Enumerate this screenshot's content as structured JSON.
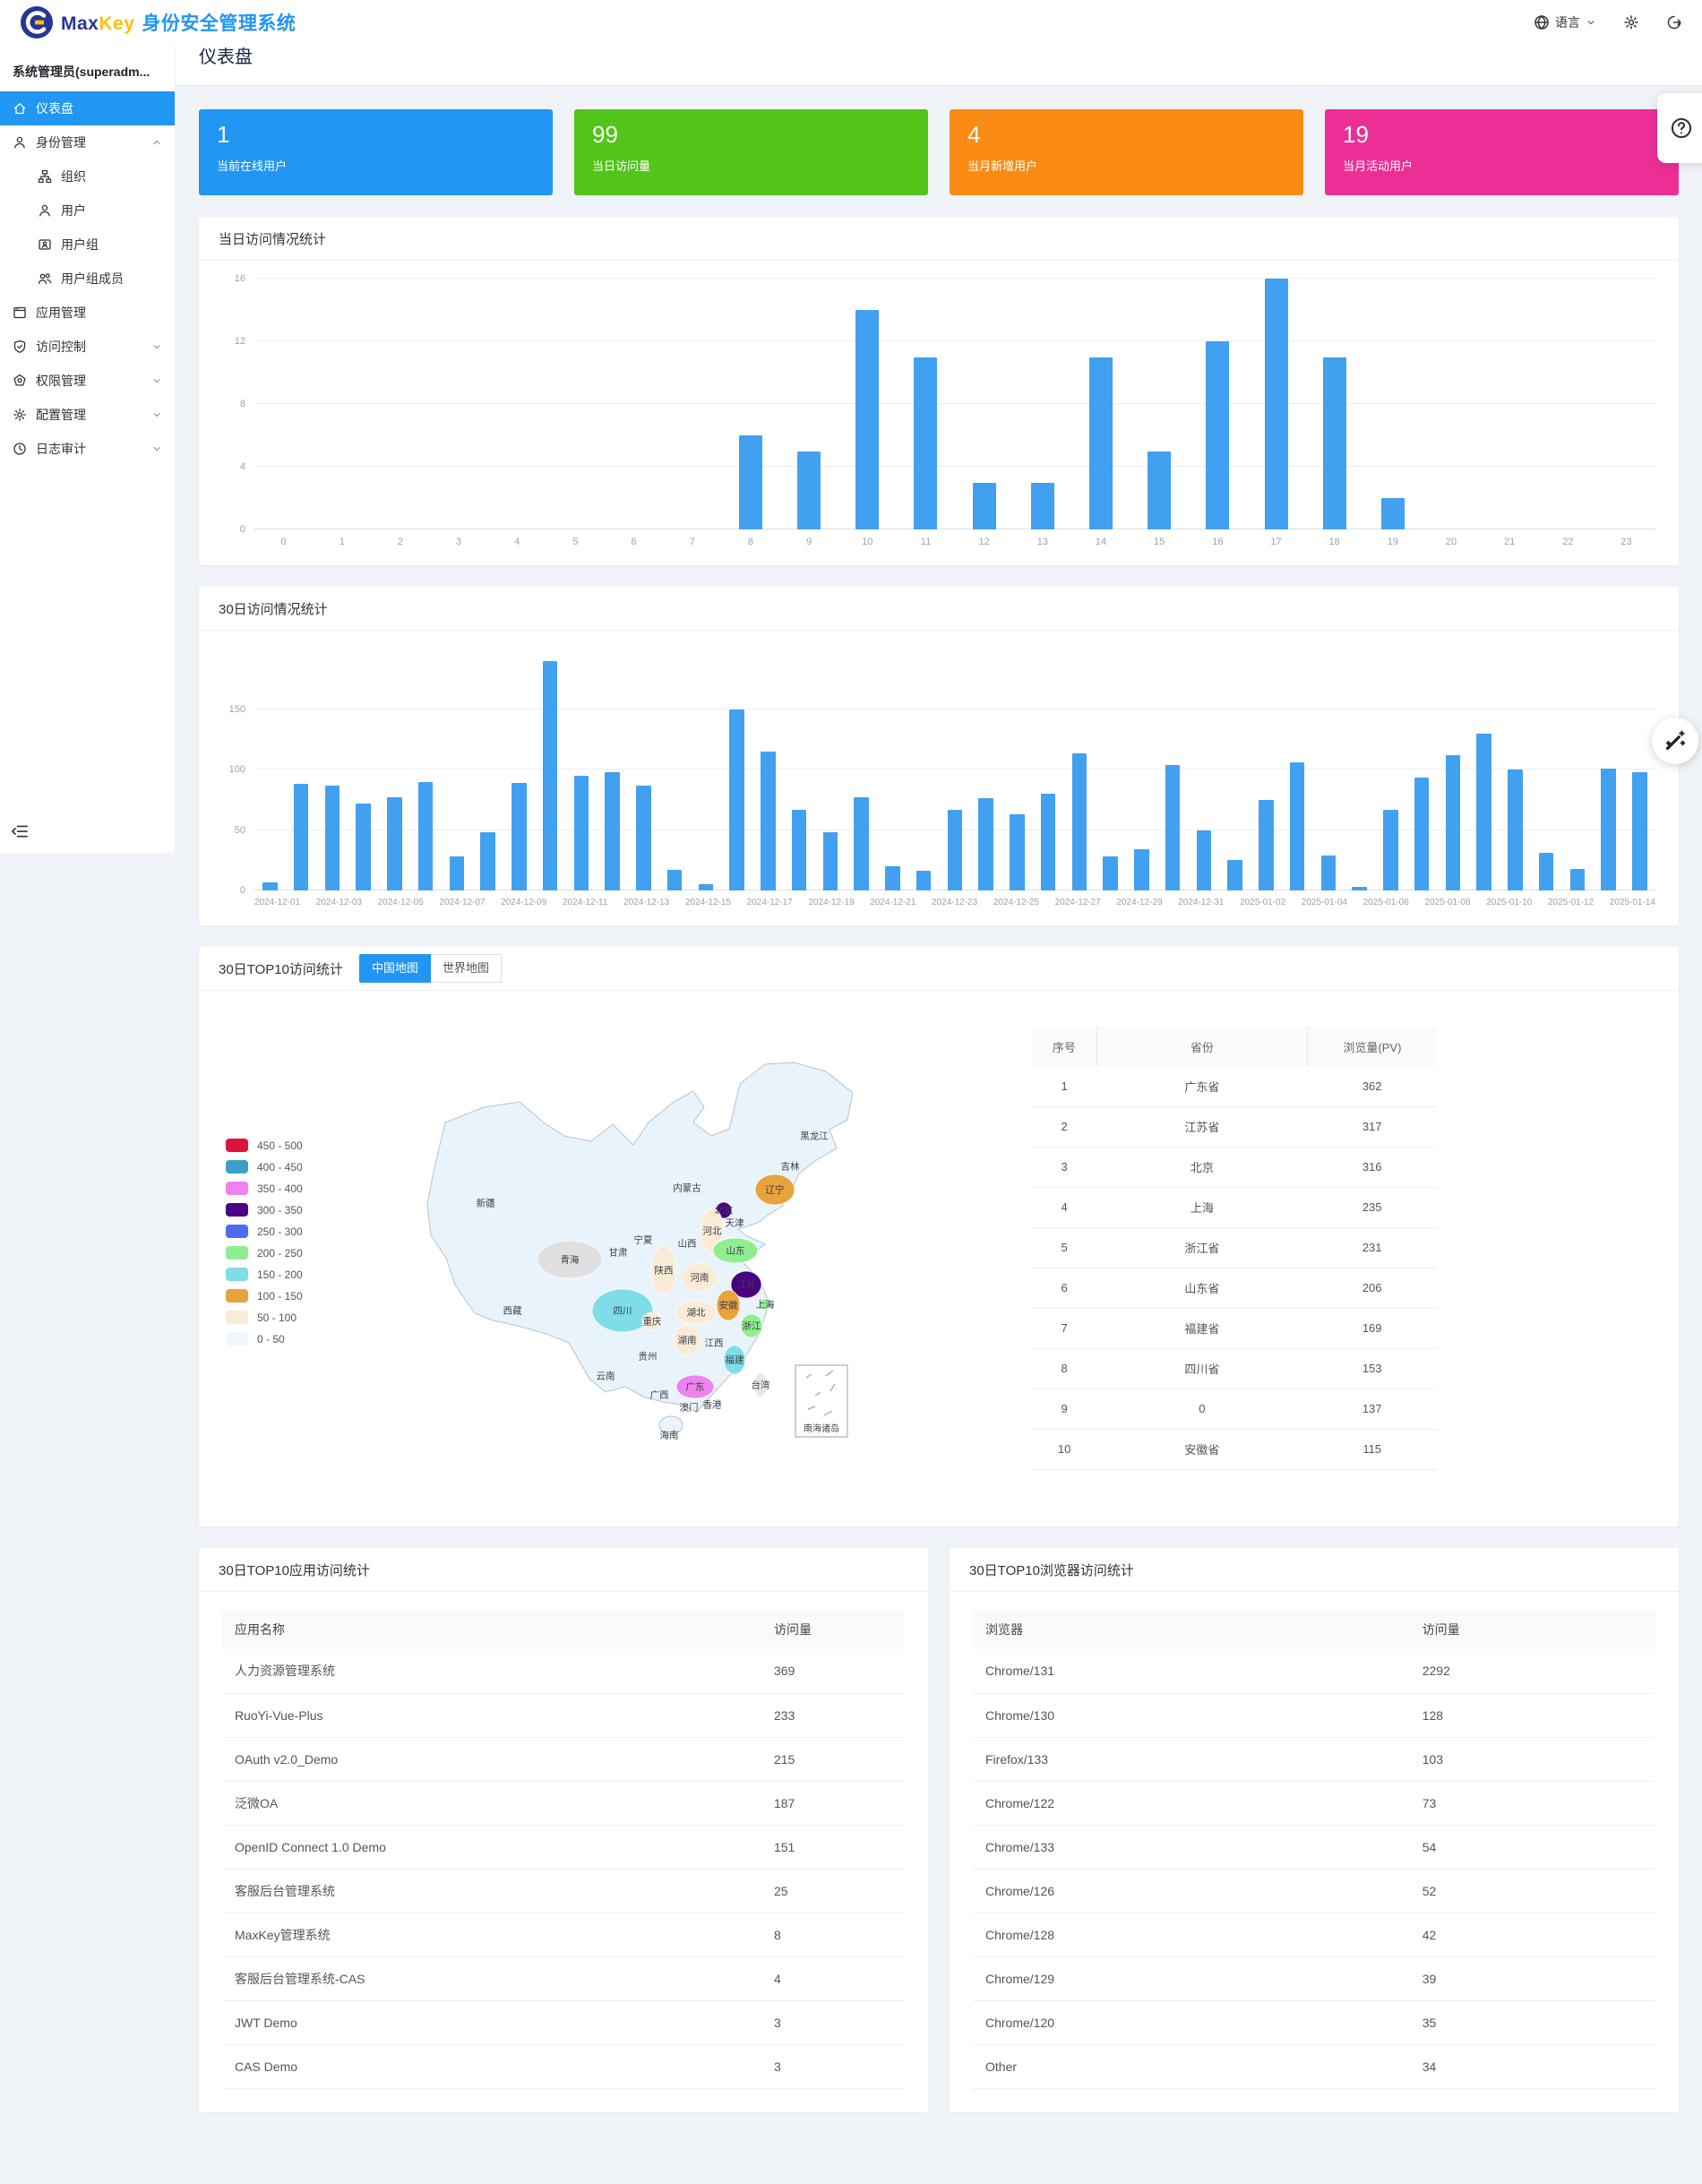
{
  "header": {
    "brand": {
      "max": "Max",
      "key": "Key",
      "suffix": "身份安全管理系统"
    },
    "actions": {
      "language": "语言"
    }
  },
  "sidebar": {
    "user_label": "系统管理员(superadm...",
    "items": [
      {
        "name": "dashboard",
        "label": "仪表盘",
        "icon": "home-icon",
        "active": true,
        "indent": 0,
        "chevron": null
      },
      {
        "name": "identity",
        "label": "身份管理",
        "icon": "identity-icon",
        "active": false,
        "indent": 0,
        "chevron": "up"
      },
      {
        "name": "organization",
        "label": "组织",
        "icon": "organization-icon",
        "active": false,
        "indent": 1,
        "chevron": null
      },
      {
        "name": "users",
        "label": "用户",
        "icon": "user-icon",
        "active": false,
        "indent": 1,
        "chevron": null
      },
      {
        "name": "user-groups",
        "label": "用户组",
        "icon": "user-group-icon",
        "active": false,
        "indent": 1,
        "chevron": null
      },
      {
        "name": "group-members",
        "label": "用户组成员",
        "icon": "group-members-icon",
        "active": false,
        "indent": 1,
        "chevron": null
      },
      {
        "name": "apps",
        "label": "应用管理",
        "icon": "app-management-icon",
        "active": false,
        "indent": 0,
        "chevron": null
      },
      {
        "name": "access-control",
        "label": "访问控制",
        "icon": "access-control-icon",
        "active": false,
        "indent": 0,
        "chevron": "down"
      },
      {
        "name": "permissions",
        "label": "权限管理",
        "icon": "permission-icon",
        "active": false,
        "indent": 0,
        "chevron": "down"
      },
      {
        "name": "config",
        "label": "配置管理",
        "icon": "config-icon",
        "active": false,
        "indent": 0,
        "chevron": "down"
      },
      {
        "name": "audit",
        "label": "日志审计",
        "icon": "audit-log-icon",
        "active": false,
        "indent": 0,
        "chevron": "down"
      }
    ]
  },
  "breadcrumb": {
    "home": "home",
    "separator": "/",
    "current": "仪表盘"
  },
  "page_title": "仪表盘",
  "stat_cards": [
    {
      "value": "1",
      "label": "当前在线用户",
      "color": "#2196f3"
    },
    {
      "value": "99",
      "label": "当日访问量",
      "color": "#52c41a"
    },
    {
      "value": "4",
      "label": "当月新增用户",
      "color": "#fa8c16"
    },
    {
      "value": "19",
      "label": "当月活动用户",
      "color": "#eb2f96"
    }
  ],
  "chart_data": [
    {
      "id": "today_visits",
      "type": "bar",
      "title": "当日访问情况统计",
      "categories": [
        "0",
        "1",
        "2",
        "3",
        "4",
        "5",
        "6",
        "7",
        "8",
        "9",
        "10",
        "11",
        "12",
        "13",
        "14",
        "15",
        "16",
        "17",
        "18",
        "19",
        "20",
        "21",
        "22",
        "23"
      ],
      "values": [
        0,
        0,
        0,
        0,
        0,
        0,
        0,
        0,
        6,
        5,
        14,
        11,
        3,
        3,
        11,
        5,
        12,
        16,
        11,
        2,
        0,
        0,
        0,
        0
      ],
      "xlabel": "",
      "ylabel": "",
      "ylim": [
        0,
        16
      ],
      "yticks": [
        0,
        4,
        8,
        12,
        16
      ],
      "grid": true,
      "legend_position": "none",
      "bar_color": "#42a0f0",
      "label_every": 1
    },
    {
      "id": "monthly_visits",
      "type": "bar",
      "title": "30日访问情况统计",
      "categories": [
        "2024-12-01",
        "2024-12-02",
        "2024-12-03",
        "2024-12-04",
        "2024-12-05",
        "2024-12-06",
        "2024-12-07",
        "2024-12-08",
        "2024-12-09",
        "2024-12-10",
        "2024-12-11",
        "2024-12-12",
        "2024-12-13",
        "2024-12-14",
        "2024-12-15",
        "2024-12-16",
        "2024-12-17",
        "2024-12-18",
        "2024-12-19",
        "2024-12-20",
        "2024-12-21",
        "2024-12-22",
        "2024-12-23",
        "2024-12-24",
        "2024-12-25",
        "2024-12-26",
        "2024-12-27",
        "2024-12-28",
        "2024-12-29",
        "2024-12-30",
        "2024-12-31",
        "2025-01-01",
        "2025-01-02",
        "2025-01-03",
        "2025-01-04",
        "2025-01-05",
        "2025-01-06",
        "2025-01-07",
        "2025-01-08",
        "2025-01-09",
        "2025-01-10",
        "2025-01-11",
        "2025-01-12",
        "2025-01-13",
        "2025-01-14"
      ],
      "values": [
        7,
        88,
        87,
        72,
        77,
        90,
        28,
        48,
        89,
        190,
        95,
        98,
        87,
        17,
        5,
        150,
        115,
        67,
        48,
        77,
        20,
        16,
        67,
        76,
        63,
        80,
        113,
        28,
        34,
        104,
        50,
        25,
        75,
        106,
        29,
        3,
        67,
        93,
        112,
        130,
        100,
        31,
        18,
        101,
        98
      ],
      "xlabel": "",
      "ylabel": "",
      "ylim": [
        0,
        200
      ],
      "yticks": [
        0,
        50,
        100,
        150
      ],
      "grid": true,
      "legend_position": "none",
      "bar_color": "#42a0f0",
      "label_every": 2
    },
    {
      "id": "region_top10",
      "type": "heatmap",
      "title": "30日TOP10访问统计",
      "tabs": [
        "中国地图",
        "世界地图"
      ],
      "active_tab": "中国地图",
      "legend": [
        {
          "range": "450 - 500",
          "color": "#dc143c"
        },
        {
          "range": "400 - 450",
          "color": "#3c9fc8"
        },
        {
          "range": "350 - 400",
          "color": "#ee82ee"
        },
        {
          "range": "300 - 350",
          "color": "#4b0082"
        },
        {
          "range": "250 - 300",
          "color": "#4d6bf0"
        },
        {
          "range": "200 - 250",
          "color": "#90ee90"
        },
        {
          "range": "150 - 200",
          "color": "#7fdde8"
        },
        {
          "range": "100 - 150",
          "color": "#e8a33d"
        },
        {
          "range": "50 - 100",
          "color": "#faebd7"
        },
        {
          "range": "0 - 50",
          "color": "#f0f8ff"
        }
      ],
      "table": {
        "headers": [
          "序号",
          "省份",
          "浏览量(PV)"
        ],
        "rows": [
          [
            "1",
            "广东省",
            "362"
          ],
          [
            "2",
            "江苏省",
            "317"
          ],
          [
            "3",
            "北京",
            "316"
          ],
          [
            "4",
            "上海",
            "235"
          ],
          [
            "5",
            "浙江省",
            "231"
          ],
          [
            "6",
            "山东省",
            "206"
          ],
          [
            "7",
            "福建省",
            "169"
          ],
          [
            "8",
            "四川省",
            "153"
          ],
          [
            "9",
            "0",
            "137"
          ],
          [
            "10",
            "安徽省",
            "115"
          ]
        ]
      },
      "inset_label": "南海诸岛",
      "provinces": [
        {
          "name": "新疆",
          "x": 120,
          "y": 185,
          "color": null
        },
        {
          "name": "西藏",
          "x": 150,
          "y": 305,
          "color": null
        },
        {
          "name": "青海",
          "x": 214,
          "y": 248,
          "color": "#e0e0e0",
          "rx": 36,
          "ry": 21
        },
        {
          "name": "甘肃",
          "x": 268,
          "y": 240,
          "color": null
        },
        {
          "name": "宁夏",
          "x": 296,
          "y": 226,
          "color": null
        },
        {
          "name": "内蒙古",
          "x": 345,
          "y": 168,
          "color": null
        },
        {
          "name": "黑龙江",
          "x": 487,
          "y": 110,
          "color": null
        },
        {
          "name": "吉林",
          "x": 460,
          "y": 144,
          "color": null
        },
        {
          "name": "辽宁",
          "x": 443,
          "y": 170,
          "color": "#e8a33d",
          "rx": 22,
          "ry": 17
        },
        {
          "name": "北京",
          "x": 386,
          "y": 193,
          "color": "#4b0082",
          "rx": 9,
          "ry": 9
        },
        {
          "name": "天津",
          "x": 398,
          "y": 207,
          "color": null
        },
        {
          "name": "河北",
          "x": 373,
          "y": 216,
          "color": "#faebd7",
          "rx": 13,
          "ry": 25
        },
        {
          "name": "山西",
          "x": 345,
          "y": 230,
          "color": null
        },
        {
          "name": "山东",
          "x": 399,
          "y": 238,
          "color": "#90ee90",
          "rx": 25,
          "ry": 14
        },
        {
          "name": "陕西",
          "x": 319,
          "y": 260,
          "color": "#faebd7",
          "rx": 14,
          "ry": 27
        },
        {
          "name": "河南",
          "x": 359,
          "y": 268,
          "color": "#faebd7",
          "rx": 20,
          "ry": 16
        },
        {
          "name": "江苏",
          "x": 411,
          "y": 276,
          "color": "#4b0082",
          "rx": 17,
          "ry": 15
        },
        {
          "name": "安徽",
          "x": 391,
          "y": 299,
          "color": "#e8a33d",
          "rx": 13,
          "ry": 17
        },
        {
          "name": "上海",
          "x": 432,
          "y": 298,
          "color": "#90ee90",
          "rx": 6,
          "ry": 6
        },
        {
          "name": "湖北",
          "x": 355,
          "y": 307,
          "color": "#faebd7",
          "rx": 23,
          "ry": 13
        },
        {
          "name": "浙江",
          "x": 417,
          "y": 322,
          "color": "#90ee90",
          "rx": 12,
          "ry": 13
        },
        {
          "name": "四川",
          "x": 273,
          "y": 305,
          "color": "#7fdde8",
          "rx": 34,
          "ry": 24
        },
        {
          "name": "重庆",
          "x": 306,
          "y": 317,
          "color": "#faebd7",
          "rx": 11,
          "ry": 10
        },
        {
          "name": "湖南",
          "x": 345,
          "y": 338,
          "color": "#faebd7",
          "rx": 15,
          "ry": 17
        },
        {
          "name": "江西",
          "x": 375,
          "y": 341,
          "color": null
        },
        {
          "name": "福建",
          "x": 398,
          "y": 360,
          "color": "#7fdde8",
          "rx": 12,
          "ry": 16
        },
        {
          "name": "贵州",
          "x": 301,
          "y": 356,
          "color": null
        },
        {
          "name": "云南",
          "x": 254,
          "y": 378,
          "color": null
        },
        {
          "name": "广西",
          "x": 314,
          "y": 399,
          "color": null
        },
        {
          "name": "广东",
          "x": 354,
          "y": 390,
          "color": "#ee82ee",
          "rx": 21,
          "ry": 13
        },
        {
          "name": "澳门",
          "x": 347,
          "y": 413,
          "color": null
        },
        {
          "name": "香港",
          "x": 373,
          "y": 410,
          "color": null
        },
        {
          "name": "海南",
          "x": 325,
          "y": 444,
          "color": null
        },
        {
          "name": "台湾",
          "x": 427,
          "y": 388,
          "color": "#e6e6e6",
          "rx": 7,
          "ry": 13
        }
      ]
    },
    {
      "id": "apps_top10",
      "type": "table",
      "title": "30日TOP10应用访问统计",
      "headers": [
        "应用名称",
        "访问量"
      ],
      "rows": [
        [
          "人力资源管理系统",
          "369"
        ],
        [
          "RuoYi-Vue-Plus",
          "233"
        ],
        [
          "OAuth v2.0_Demo",
          "215"
        ],
        [
          "泛微OA",
          "187"
        ],
        [
          "OpenID Connect 1.0 Demo",
          "151"
        ],
        [
          "客服后台管理系统",
          "25"
        ],
        [
          "MaxKey管理系统",
          "8"
        ],
        [
          "客服后台管理系统-CAS",
          "4"
        ],
        [
          "JWT Demo",
          "3"
        ],
        [
          "CAS Demo",
          "3"
        ]
      ]
    },
    {
      "id": "browsers_top10",
      "type": "table",
      "title": "30日TOP10浏览器访问统计",
      "headers": [
        "浏览器",
        "访问量"
      ],
      "rows": [
        [
          "Chrome/131",
          "2292"
        ],
        [
          "Chrome/130",
          "128"
        ],
        [
          "Firefox/133",
          "103"
        ],
        [
          "Chrome/122",
          "73"
        ],
        [
          "Chrome/133",
          "54"
        ],
        [
          "Chrome/126",
          "52"
        ],
        [
          "Chrome/128",
          "42"
        ],
        [
          "Chrome/129",
          "39"
        ],
        [
          "Chrome/120",
          "35"
        ],
        [
          "Other",
          "34"
        ]
      ]
    }
  ]
}
